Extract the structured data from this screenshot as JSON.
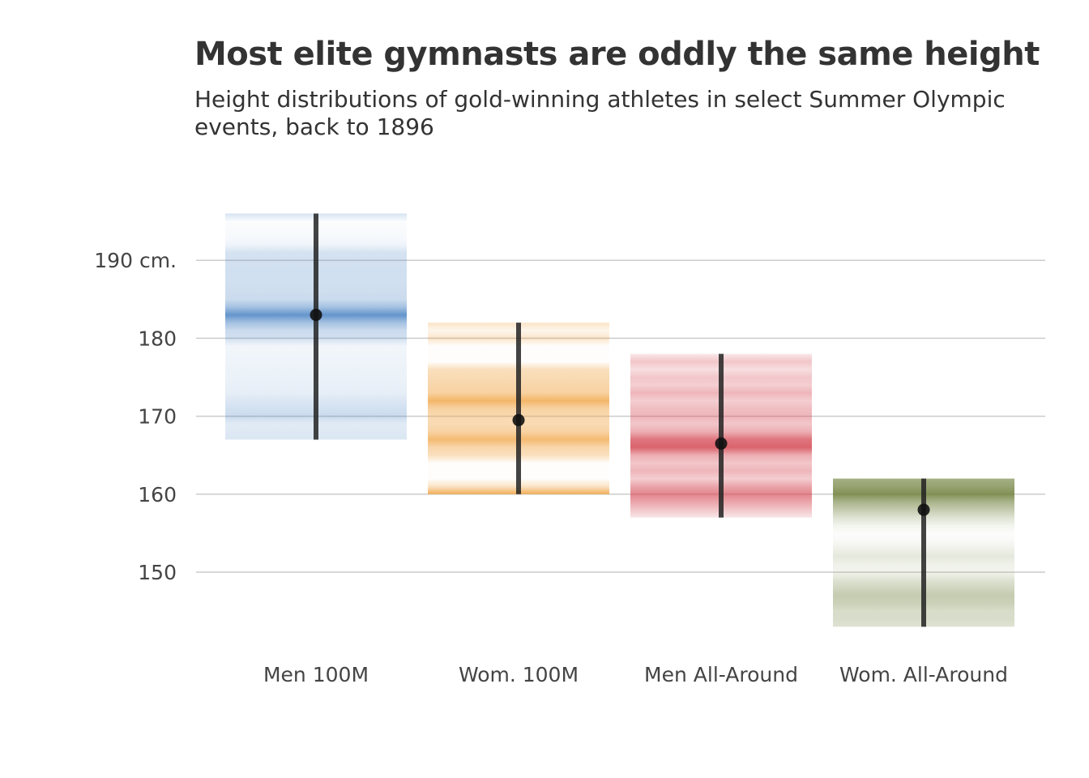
{
  "chart_data": {
    "type": "range-distribution",
    "title": "Most elite gymnasts are oddly the same height",
    "subtitle": "Height distributions of gold-winning athletes in select Summer Olympic events, back to 1896",
    "ylabel": "",
    "ylim": [
      142,
      197
    ],
    "y_ticks": [
      150,
      160,
      170,
      180,
      190
    ],
    "y_tick_labels": [
      "150",
      "160",
      "170",
      "180",
      "190 cm."
    ],
    "grid": true,
    "categories": [
      "Men 100M",
      "Wom. 100M",
      "Men All-Around",
      "Wom. All-Around"
    ],
    "series": [
      {
        "color": "#5b8fc9",
        "min": 167,
        "max": 196,
        "mean": 183,
        "density": [
          [
            167,
            0.22
          ],
          [
            169,
            0.18
          ],
          [
            170,
            0.32
          ],
          [
            172,
            0.22
          ],
          [
            173,
            0.15
          ],
          [
            175,
            0.12
          ],
          [
            177,
            0.1
          ],
          [
            179,
            0.08
          ],
          [
            180,
            0.28
          ],
          [
            181,
            0.32
          ],
          [
            182,
            0.55
          ],
          [
            183,
            0.95
          ],
          [
            184,
            0.55
          ],
          [
            185,
            0.32
          ],
          [
            187,
            0.28
          ],
          [
            189,
            0.28
          ],
          [
            191,
            0.26
          ],
          [
            192,
            0.1
          ],
          [
            193,
            0.05
          ],
          [
            195,
            0.03
          ],
          [
            196,
            0.25
          ]
        ]
      },
      {
        "color": "#f0a443",
        "min": 160,
        "max": 182,
        "mean": 169.5,
        "density": [
          [
            160,
            0.9
          ],
          [
            161,
            0.3
          ],
          [
            162,
            0.02
          ],
          [
            164,
            0.02
          ],
          [
            165,
            0.35
          ],
          [
            166,
            0.45
          ],
          [
            167,
            0.75
          ],
          [
            168,
            0.5
          ],
          [
            169,
            0.4
          ],
          [
            170,
            0.42
          ],
          [
            171,
            0.5
          ],
          [
            172,
            0.8
          ],
          [
            173,
            0.5
          ],
          [
            175,
            0.4
          ],
          [
            176,
            0.35
          ],
          [
            177,
            0.02
          ],
          [
            179,
            0.02
          ],
          [
            180,
            0.28
          ],
          [
            181,
            0.1
          ],
          [
            182,
            0.3
          ]
        ]
      },
      {
        "color": "#d95c66",
        "min": 157,
        "max": 178,
        "mean": 166.5,
        "density": [
          [
            157,
            0.15
          ],
          [
            158,
            0.35
          ],
          [
            159,
            0.55
          ],
          [
            160,
            0.75
          ],
          [
            161,
            0.55
          ],
          [
            162,
            0.3
          ],
          [
            163,
            0.45
          ],
          [
            164,
            0.35
          ],
          [
            165,
            0.5
          ],
          [
            166,
            0.95
          ],
          [
            167,
            0.85
          ],
          [
            168,
            0.5
          ],
          [
            169,
            0.35
          ],
          [
            170,
            0.45
          ],
          [
            171,
            0.4
          ],
          [
            172,
            0.3
          ],
          [
            173,
            0.45
          ],
          [
            174,
            0.3
          ],
          [
            175,
            0.35
          ],
          [
            176,
            0.2
          ],
          [
            177,
            0.35
          ],
          [
            178,
            0.15
          ]
        ]
      },
      {
        "color": "#7d8c4e",
        "min": 143,
        "max": 162,
        "mean": 158,
        "density": [
          [
            143,
            0.25
          ],
          [
            144,
            0.3
          ],
          [
            145,
            0.3
          ],
          [
            146,
            0.4
          ],
          [
            147,
            0.45
          ],
          [
            148,
            0.35
          ],
          [
            149,
            0.25
          ],
          [
            150,
            0.1
          ],
          [
            151,
            0.12
          ],
          [
            152,
            0.2
          ],
          [
            153,
            0.12
          ],
          [
            154,
            0.05
          ],
          [
            155,
            0.02
          ],
          [
            156,
            0.1
          ],
          [
            157,
            0.25
          ],
          [
            158,
            0.45
          ],
          [
            159,
            0.65
          ],
          [
            160,
            0.95
          ],
          [
            161,
            0.8
          ],
          [
            162,
            0.7
          ]
        ]
      }
    ]
  }
}
